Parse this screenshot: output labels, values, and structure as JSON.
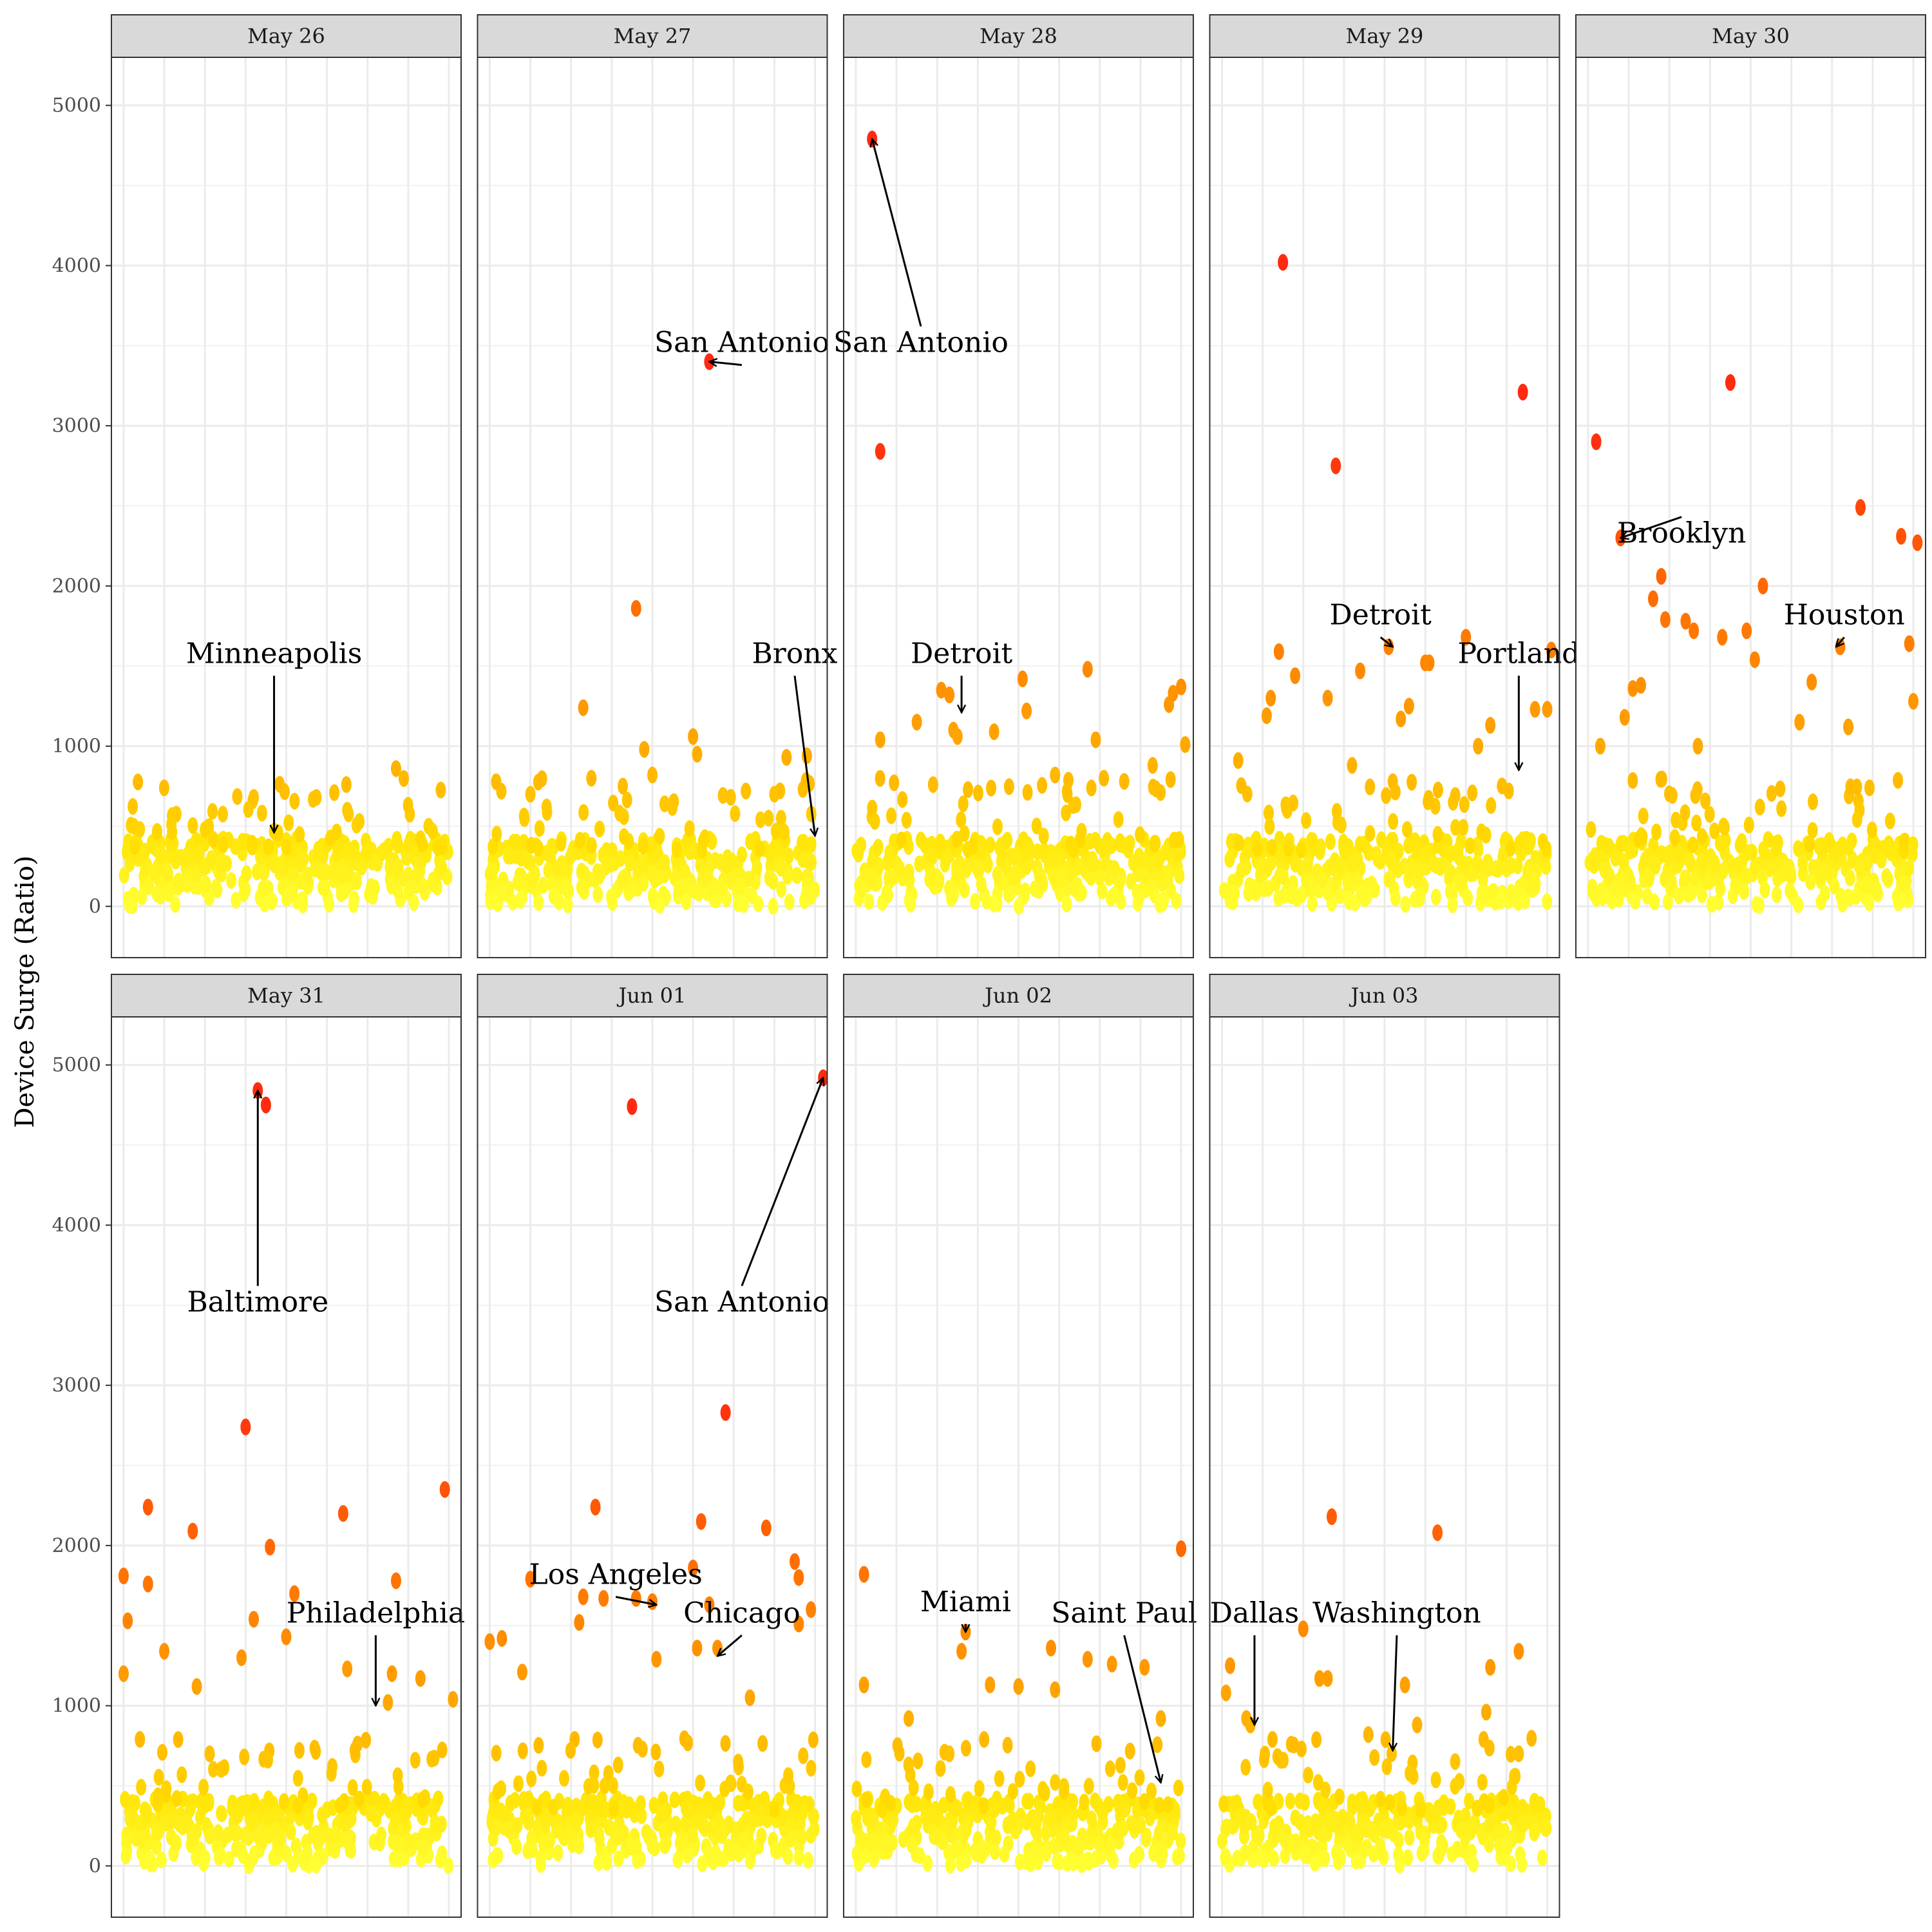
{
  "chart_data": {
    "type": "scatter",
    "layout": "faceted",
    "ylabel": "Device Surge (Ratio)",
    "xlabel": "",
    "ylim": [
      -320,
      5300
    ],
    "y_ticks": [
      0,
      1000,
      2000,
      3000,
      4000,
      5000
    ],
    "y_tick_labels": [
      "0",
      "1000",
      "2000",
      "3000",
      "4000",
      "5000"
    ],
    "x_range": [
      -0.3,
      8.3
    ],
    "x_gridlines": [
      0,
      1,
      2,
      3,
      4,
      5,
      6,
      7,
      8
    ],
    "grid": true,
    "legend": "none",
    "background_points": {
      "per_panel": 300,
      "y_range": [
        0,
        420
      ]
    },
    "color_scale": [
      "#ffff33",
      "#ffe000",
      "#ffb000",
      "#ff7a00",
      "#ff2a10"
    ],
    "panels": [
      {
        "label": "May 26",
        "points": [
          [
            0.4,
            480
          ],
          [
            3.2,
            680
          ],
          [
            3.7,
            470
          ],
          [
            3.8,
            460
          ],
          [
            5.5,
            600
          ],
          [
            5.8,
            530
          ],
          [
            6.7,
            860
          ],
          [
            7.5,
            500
          ],
          [
            7.6,
            470
          ],
          [
            2.0,
            480
          ],
          [
            2.2,
            420
          ]
        ],
        "annotations": [
          {
            "text": "Minneapolis",
            "point": [
              3.7,
              460
            ],
            "label_pos": [
              3.7,
              1520
            ]
          }
        ]
      },
      {
        "label": "May 27",
        "points": [
          [
            1.0,
            700
          ],
          [
            1.4,
            620
          ],
          [
            2.3,
            1240
          ],
          [
            2.5,
            800
          ],
          [
            3.6,
            1860
          ],
          [
            3.8,
            980
          ],
          [
            4.0,
            820
          ],
          [
            4.3,
            640
          ],
          [
            5.0,
            1060
          ],
          [
            5.1,
            950
          ],
          [
            5.4,
            3400
          ],
          [
            6.3,
            720
          ],
          [
            7.0,
            700
          ],
          [
            7.3,
            930
          ],
          [
            7.8,
            940
          ],
          [
            7.7,
            730
          ],
          [
            3.3,
            560
          ]
        ],
        "annotations": [
          {
            "text": "San Antonio",
            "point": [
              5.4,
              3400
            ],
            "label_pos": [
              6.2,
              3460
            ]
          },
          {
            "text": "Bronx",
            "point": [
              8.0,
              440
            ],
            "label_pos": [
              7.5,
              1520
            ]
          }
        ]
      },
      {
        "label": "May 28",
        "points": [
          [
            0.4,
            4790
          ],
          [
            0.6,
            2840
          ],
          [
            0.6,
            1040
          ],
          [
            1.5,
            1150
          ],
          [
            2.1,
            1350
          ],
          [
            2.3,
            1320
          ],
          [
            2.4,
            1100
          ],
          [
            2.5,
            1060
          ],
          [
            3.4,
            1090
          ],
          [
            4.1,
            1420
          ],
          [
            4.2,
            1220
          ],
          [
            5.7,
            1480
          ],
          [
            5.9,
            1040
          ],
          [
            7.3,
            880
          ],
          [
            7.7,
            1260
          ],
          [
            7.8,
            1330
          ],
          [
            8.0,
            1370
          ],
          [
            6.1,
            800
          ],
          [
            6.6,
            780
          ],
          [
            8.1,
            1010
          ],
          [
            4.9,
            820
          ],
          [
            1.9,
            760
          ]
        ],
        "annotations": [
          {
            "text": "San Antonio",
            "point": [
              0.4,
              4790
            ],
            "label_pos": [
              1.6,
              3460
            ]
          },
          {
            "text": "Detroit",
            "point": [
              2.6,
              1210
            ],
            "label_pos": [
              2.6,
              1520
            ]
          }
        ]
      },
      {
        "label": "May 29",
        "points": [
          [
            1.5,
            4020
          ],
          [
            2.8,
            2750
          ],
          [
            1.4,
            1590
          ],
          [
            1.8,
            1440
          ],
          [
            1.2,
            1300
          ],
          [
            1.1,
            1190
          ],
          [
            2.6,
            1300
          ],
          [
            3.4,
            1470
          ],
          [
            4.1,
            1620
          ],
          [
            5.1,
            1520
          ],
          [
            6.0,
            1680
          ],
          [
            7.4,
            3210
          ],
          [
            8.1,
            1600
          ],
          [
            8.0,
            1230
          ],
          [
            7.7,
            1230
          ],
          [
            4.6,
            1250
          ],
          [
            6.3,
            1000
          ],
          [
            6.6,
            1130
          ],
          [
            5.0,
            1520
          ],
          [
            4.4,
            1170
          ],
          [
            3.2,
            880
          ],
          [
            0.4,
            910
          ]
        ],
        "annotations": [
          {
            "text": "Detroit",
            "point": [
              4.2,
              1620
            ],
            "label_pos": [
              3.9,
              1760
            ]
          },
          {
            "text": "Portland",
            "point": [
              7.3,
              850
            ],
            "label_pos": [
              7.3,
              1520
            ]
          }
        ]
      },
      {
        "label": "May 30",
        "points": [
          [
            0.2,
            2900
          ],
          [
            0.8,
            2300
          ],
          [
            1.8,
            2060
          ],
          [
            1.9,
            1790
          ],
          [
            1.6,
            1920
          ],
          [
            2.4,
            1780
          ],
          [
            2.6,
            1720
          ],
          [
            3.5,
            3270
          ],
          [
            3.3,
            1680
          ],
          [
            3.9,
            1720
          ],
          [
            4.1,
            1540
          ],
          [
            4.3,
            2000
          ],
          [
            5.5,
            1400
          ],
          [
            6.2,
            1620
          ],
          [
            6.7,
            2490
          ],
          [
            7.7,
            2310
          ],
          [
            8.1,
            2270
          ],
          [
            7.9,
            1640
          ],
          [
            8.0,
            1280
          ],
          [
            1.1,
            1360
          ],
          [
            1.3,
            1380
          ],
          [
            0.9,
            1180
          ],
          [
            0.3,
            1000
          ],
          [
            5.2,
            1150
          ],
          [
            6.4,
            1120
          ],
          [
            2.7,
            1000
          ]
        ],
        "annotations": [
          {
            "text": "Brooklyn",
            "point": [
              0.8,
              2300
            ],
            "label_pos": [
              2.3,
              2270
            ]
          },
          {
            "text": "Houston",
            "point": [
              6.1,
              1620
            ],
            "label_pos": [
              6.3,
              1760
            ]
          }
        ]
      },
      {
        "label": "May 31",
        "points": [
          [
            3.3,
            4840
          ],
          [
            3.5,
            4750
          ],
          [
            3.0,
            2740
          ],
          [
            0.6,
            2240
          ],
          [
            1.7,
            2090
          ],
          [
            3.6,
            1990
          ],
          [
            5.4,
            2200
          ],
          [
            6.7,
            1780
          ],
          [
            7.9,
            2350
          ],
          [
            0.0,
            1810
          ],
          [
            0.1,
            1530
          ],
          [
            0.6,
            1760
          ],
          [
            0.0,
            1200
          ],
          [
            1.0,
            1340
          ],
          [
            3.2,
            1540
          ],
          [
            4.2,
            1700
          ],
          [
            4.0,
            1430
          ],
          [
            5.5,
            1230
          ],
          [
            6.6,
            1200
          ],
          [
            7.3,
            1170
          ],
          [
            6.5,
            1020
          ],
          [
            8.1,
            1040
          ],
          [
            1.8,
            1120
          ],
          [
            2.9,
            1300
          ],
          [
            0.4,
            790
          ]
        ],
        "annotations": [
          {
            "text": "Baltimore",
            "point": [
              3.3,
              4840
            ],
            "label_pos": [
              3.3,
              3460
            ]
          },
          {
            "text": "Philadelphia",
            "point": [
              6.2,
              1000
            ],
            "label_pos": [
              6.2,
              1520
            ]
          }
        ]
      },
      {
        "label": "Jun 01",
        "points": [
          [
            8.2,
            4920
          ],
          [
            3.5,
            4740
          ],
          [
            5.8,
            2830
          ],
          [
            2.6,
            2240
          ],
          [
            5.2,
            2150
          ],
          [
            6.8,
            2110
          ],
          [
            7.5,
            1900
          ],
          [
            7.6,
            1800
          ],
          [
            7.9,
            1600
          ],
          [
            1.0,
            1790
          ],
          [
            2.3,
            1680
          ],
          [
            2.8,
            1670
          ],
          [
            3.6,
            1670
          ],
          [
            4.0,
            1650
          ],
          [
            4.1,
            1290
          ],
          [
            5.0,
            1860
          ],
          [
            5.4,
            1630
          ],
          [
            5.6,
            1360
          ],
          [
            7.6,
            1510
          ],
          [
            0.3,
            1420
          ],
          [
            0.0,
            1400
          ],
          [
            0.8,
            1210
          ],
          [
            2.2,
            1520
          ],
          [
            5.1,
            1360
          ],
          [
            6.4,
            1050
          ]
        ],
        "annotations": [
          {
            "text": "San Antonio",
            "point": [
              8.2,
              4920
            ],
            "label_pos": [
              6.2,
              3460
            ]
          },
          {
            "text": "Los Angeles",
            "point": [
              4.1,
              1630
            ],
            "label_pos": [
              3.1,
              1760
            ]
          },
          {
            "text": "Chicago",
            "point": [
              5.6,
              1310
            ],
            "label_pos": [
              6.2,
              1520
            ]
          }
        ]
      },
      {
        "label": "Jun 02",
        "points": [
          [
            0.2,
            1820
          ],
          [
            2.7,
            1460
          ],
          [
            2.6,
            1340
          ],
          [
            0.2,
            1130
          ],
          [
            3.3,
            1130
          ],
          [
            4.0,
            1120
          ],
          [
            4.9,
            1100
          ],
          [
            4.8,
            1360
          ],
          [
            5.7,
            1290
          ],
          [
            6.3,
            1260
          ],
          [
            7.1,
            1240
          ],
          [
            8.0,
            1980
          ],
          [
            7.5,
            920
          ],
          [
            2.3,
            700
          ],
          [
            1.3,
            920
          ]
        ],
        "annotations": [
          {
            "text": "Miami",
            "point": [
              2.7,
              1460
            ],
            "label_pos": [
              2.7,
              1590
            ]
          },
          {
            "text": "Saint Paul",
            "point": [
              7.5,
              520
            ],
            "label_pos": [
              6.6,
              1520
            ]
          }
        ]
      },
      {
        "label": "Jun 03",
        "points": [
          [
            2.7,
            2180
          ],
          [
            5.3,
            2080
          ],
          [
            0.2,
            1250
          ],
          [
            0.1,
            1080
          ],
          [
            2.0,
            1480
          ],
          [
            2.4,
            1170
          ],
          [
            2.6,
            1170
          ],
          [
            4.5,
            1130
          ],
          [
            6.6,
            1240
          ],
          [
            7.3,
            1340
          ],
          [
            6.5,
            960
          ],
          [
            4.8,
            880
          ],
          [
            0.6,
            920
          ],
          [
            0.7,
            880
          ],
          [
            3.6,
            820
          ],
          [
            7.3,
            700
          ],
          [
            1.7,
            760
          ]
        ],
        "annotations": [
          {
            "text": "Dallas",
            "point": [
              0.8,
              880
            ],
            "label_pos": [
              0.8,
              1520
            ]
          },
          {
            "text": "Washington",
            "point": [
              4.2,
              720
            ],
            "label_pos": [
              4.3,
              1520
            ]
          }
        ]
      }
    ]
  }
}
